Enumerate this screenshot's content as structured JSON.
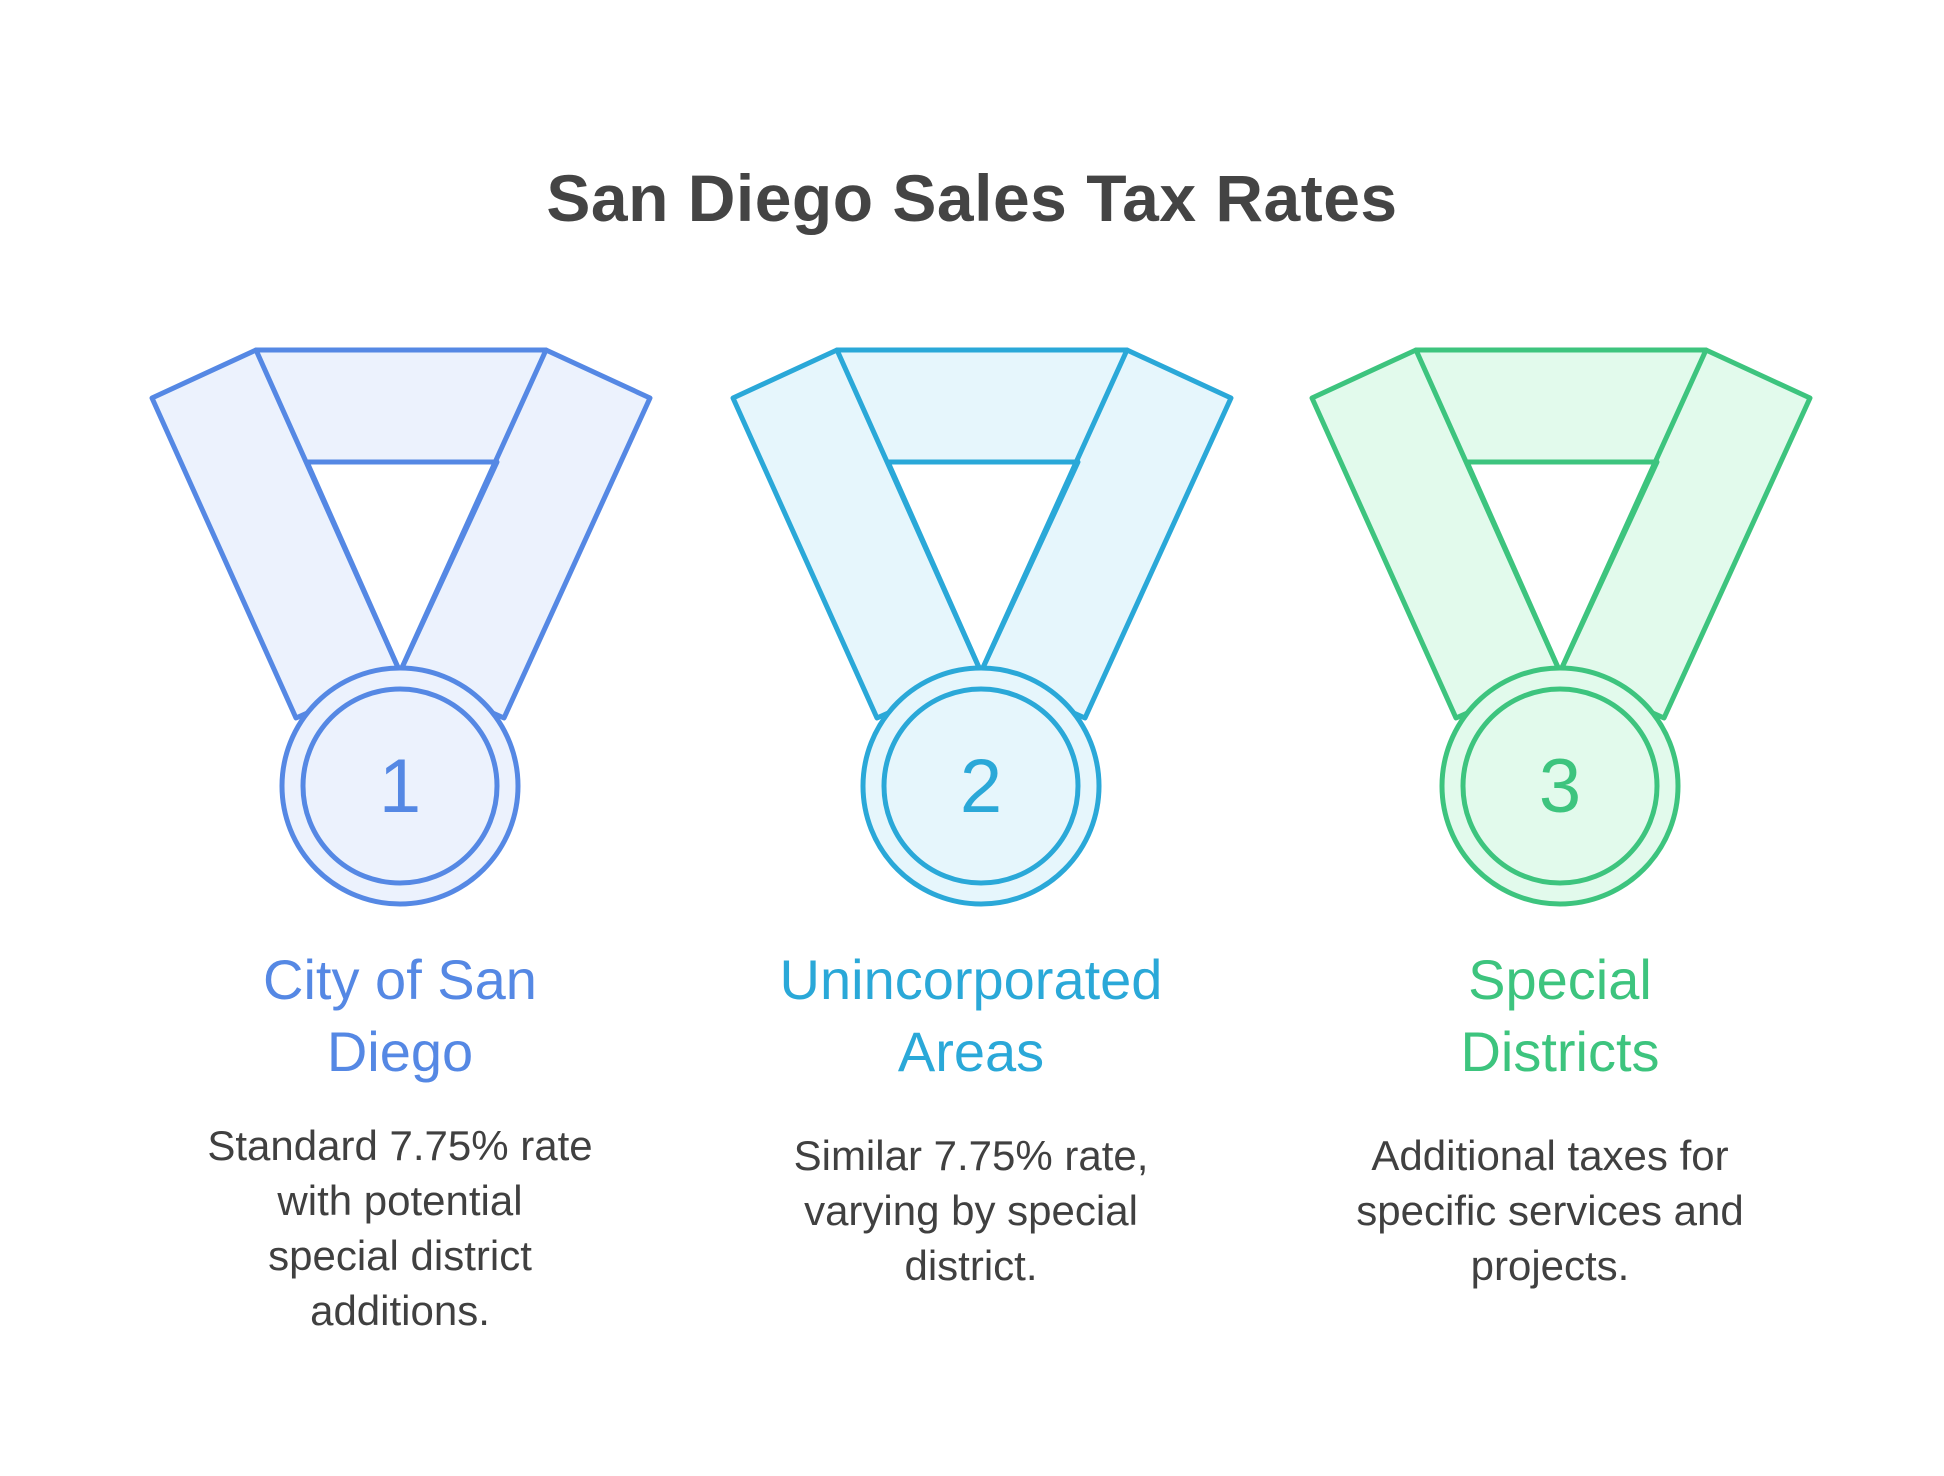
{
  "title": "San Diego Sales Tax Rates",
  "colors": {
    "blue_stroke": "#5588e4",
    "blue_fill": "#ecf2fd",
    "cyan_stroke": "#2aa8d8",
    "cyan_fill": "#e6f6fc",
    "green_stroke": "#3dc47e",
    "green_fill": "#e2faec",
    "title_text": "#444444",
    "body_text": "#404040"
  },
  "medals": [
    {
      "number": "1",
      "heading_line1": "City of San",
      "heading_line2": "Diego",
      "desc_lines": [
        "Standard 7.75% rate",
        "with potential",
        "special district",
        "additions."
      ],
      "color_key": "blue"
    },
    {
      "number": "2",
      "heading_line1": "Unincorporated",
      "heading_line2": "Areas",
      "desc_lines": [
        "Similar 7.75% rate,",
        "varying by special",
        "district."
      ],
      "color_key": "cyan"
    },
    {
      "number": "3",
      "heading_line1": "Special",
      "heading_line2": "Districts",
      "desc_lines": [
        "Additional taxes for",
        "specific services and",
        "projects."
      ],
      "color_key": "green"
    }
  ]
}
